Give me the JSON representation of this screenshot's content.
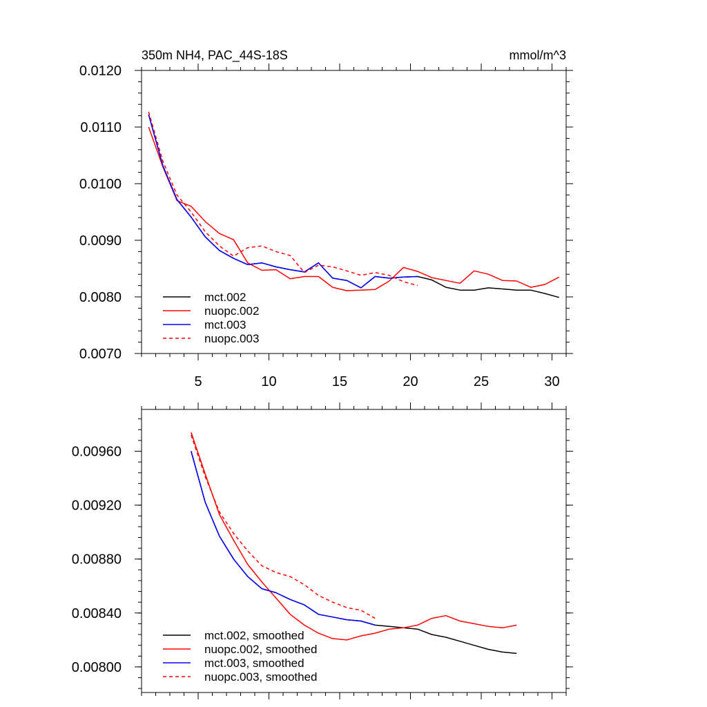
{
  "chart_data": [
    {
      "type": "line",
      "title": "350m NH4, PAC_44S-18S",
      "units": "mmol/m^3",
      "xlabel": "",
      "ylabel": "",
      "xlim": [
        1,
        31
      ],
      "ylim": [
        0.007,
        0.012
      ],
      "xticks": [
        5,
        10,
        15,
        20,
        25,
        30
      ],
      "xtick_labels": [
        "5",
        "10",
        "15",
        "20",
        "25",
        "30"
      ],
      "yticks": [
        0.007,
        0.008,
        0.009,
        0.01,
        0.011,
        0.012
      ],
      "ytick_labels": [
        "0.0070",
        "0.0080",
        "0.0090",
        "0.0100",
        "0.0110",
        "0.0120"
      ],
      "grid": false,
      "legend": "bottom-left",
      "series": [
        {
          "name": "mct.002",
          "color": "#000000",
          "dash": "solid",
          "x": [
            1.5,
            2.5,
            3.5,
            4.5,
            5.5,
            6.5,
            7.5,
            8.5,
            9.5,
            10.5,
            11.5,
            12.5,
            13.5,
            14.5,
            15.5,
            16.5,
            17.5,
            18.5,
            19.5,
            20.5,
            21.5,
            22.5,
            23.5,
            24.5,
            25.5,
            26.5,
            27.5,
            28.5,
            29.5,
            30.5
          ],
          "y": [
            0.01122,
            0.01032,
            0.00972,
            0.00941,
            0.00906,
            0.00882,
            0.00868,
            0.00857,
            0.0086,
            0.00853,
            0.00848,
            0.00844,
            0.0086,
            0.00833,
            0.00829,
            0.00816,
            0.00836,
            0.00833,
            0.00835,
            0.00836,
            0.0083,
            0.00817,
            0.00812,
            0.00812,
            0.00816,
            0.00814,
            0.00812,
            0.00812,
            0.00806,
            0.00799
          ]
        },
        {
          "name": "nuopc.002",
          "color": "#ff0000",
          "dash": "solid",
          "x": [
            1.5,
            2.5,
            3.5,
            4.5,
            5.5,
            6.5,
            7.5,
            8.5,
            9.5,
            10.5,
            11.5,
            12.5,
            13.5,
            14.5,
            15.5,
            16.5,
            17.5,
            18.5,
            19.5,
            20.5,
            21.5,
            22.5,
            23.5,
            24.5,
            25.5,
            26.5,
            27.5,
            28.5,
            29.5,
            30.5
          ],
          "y": [
            0.011,
            0.0103,
            0.0097,
            0.0096,
            0.00933,
            0.00912,
            0.00901,
            0.0086,
            0.00847,
            0.00848,
            0.00832,
            0.00836,
            0.00836,
            0.00817,
            0.00811,
            0.00812,
            0.00813,
            0.00828,
            0.00852,
            0.00845,
            0.00834,
            0.00829,
            0.00824,
            0.00846,
            0.0084,
            0.00829,
            0.00828,
            0.00817,
            0.00822,
            0.00835
          ]
        },
        {
          "name": "mct.003",
          "color": "#0000ff",
          "dash": "solid",
          "x": [
            1.5,
            2.5,
            3.5,
            4.5,
            5.5,
            6.5,
            7.5,
            8.5,
            9.5,
            10.5,
            11.5,
            12.5,
            13.5,
            14.5,
            15.5,
            16.5,
            17.5,
            18.5,
            19.5,
            20.5
          ],
          "y": [
            0.01122,
            0.01032,
            0.00972,
            0.00941,
            0.00906,
            0.00882,
            0.00868,
            0.00857,
            0.0086,
            0.00853,
            0.00848,
            0.00844,
            0.0086,
            0.00833,
            0.00829,
            0.00816,
            0.00836,
            0.00833,
            0.00835,
            0.00836
          ]
        },
        {
          "name": "nuopc.003",
          "color": "#ff0000",
          "dash": "dashed",
          "x": [
            1.5,
            2.5,
            3.5,
            4.5,
            5.5,
            6.5,
            7.5,
            8.5,
            9.5,
            10.5,
            11.5,
            12.5,
            13.5,
            14.5,
            15.5,
            16.5,
            17.5,
            18.5,
            19.5,
            20.5
          ],
          "y": [
            0.01127,
            0.0104,
            0.0098,
            0.0095,
            0.00915,
            0.0089,
            0.00872,
            0.00887,
            0.0089,
            0.0088,
            0.00873,
            0.00843,
            0.00856,
            0.00853,
            0.00846,
            0.00838,
            0.00843,
            0.00838,
            0.00827,
            0.0082
          ]
        }
      ]
    },
    {
      "type": "line",
      "title": "",
      "xlabel": "",
      "ylabel": "",
      "xlim": [
        1,
        31
      ],
      "ylim": [
        0.00781,
        0.00991
      ],
      "xticks": [
        5,
        10,
        15,
        20,
        25,
        30
      ],
      "xtick_labels": [],
      "yticks": [
        0.008,
        0.0084,
        0.0088,
        0.0092,
        0.0096
      ],
      "ytick_labels": [
        "0.00800",
        "0.00840",
        "0.00880",
        "0.00920",
        "0.00960"
      ],
      "grid": false,
      "legend": "bottom-left",
      "series": [
        {
          "name": "mct.002, smoothed",
          "color": "#000000",
          "dash": "solid",
          "x": [
            4.5,
            5.5,
            6.5,
            7.5,
            8.5,
            9.5,
            10.5,
            11.5,
            12.5,
            13.5,
            14.5,
            15.5,
            16.5,
            17.5,
            18.5,
            19.5,
            20.5,
            21.5,
            22.5,
            23.5,
            24.5,
            25.5,
            26.5,
            27.5
          ],
          "y": [
            0.0096,
            0.00922,
            0.00897,
            0.0088,
            0.00867,
            0.00858,
            0.00855,
            0.0085,
            0.00846,
            0.00839,
            0.00837,
            0.00835,
            0.00834,
            0.00831,
            0.0083,
            0.00829,
            0.00828,
            0.00824,
            0.00822,
            0.00819,
            0.00816,
            0.00813,
            0.00811,
            0.0081
          ]
        },
        {
          "name": "nuopc.002, smoothed",
          "color": "#ff0000",
          "dash": "solid",
          "x": [
            4.5,
            5.5,
            6.5,
            7.5,
            8.5,
            9.5,
            10.5,
            11.5,
            12.5,
            13.5,
            14.5,
            15.5,
            16.5,
            17.5,
            18.5,
            19.5,
            20.5,
            21.5,
            22.5,
            23.5,
            24.5,
            25.5,
            26.5,
            27.5
          ],
          "y": [
            0.00974,
            0.00943,
            0.00913,
            0.00894,
            0.00876,
            0.00863,
            0.00851,
            0.00839,
            0.00831,
            0.00825,
            0.00821,
            0.0082,
            0.00823,
            0.00825,
            0.00828,
            0.00829,
            0.00831,
            0.00836,
            0.00838,
            0.00834,
            0.00832,
            0.0083,
            0.00829,
            0.00831
          ]
        },
        {
          "name": "mct.003, smoothed",
          "color": "#0000ff",
          "dash": "solid",
          "x": [
            4.5,
            5.5,
            6.5,
            7.5,
            8.5,
            9.5,
            10.5,
            11.5,
            12.5,
            13.5,
            14.5,
            15.5,
            16.5,
            17.5
          ],
          "y": [
            0.0096,
            0.00922,
            0.00897,
            0.0088,
            0.00867,
            0.00858,
            0.00855,
            0.0085,
            0.00846,
            0.00839,
            0.00837,
            0.00835,
            0.00834,
            0.00831
          ]
        },
        {
          "name": "nuopc.003, smoothed",
          "color": "#ff0000",
          "dash": "dashed",
          "x": [
            4.5,
            5.5,
            6.5,
            7.5,
            8.5,
            9.5,
            10.5,
            11.5,
            12.5,
            13.5,
            14.5,
            15.5,
            16.5,
            17.5
          ],
          "y": [
            0.00972,
            0.00941,
            0.00915,
            0.00899,
            0.00886,
            0.00875,
            0.0087,
            0.00867,
            0.00861,
            0.00853,
            0.00848,
            0.00844,
            0.00842,
            0.00836
          ]
        }
      ]
    }
  ]
}
